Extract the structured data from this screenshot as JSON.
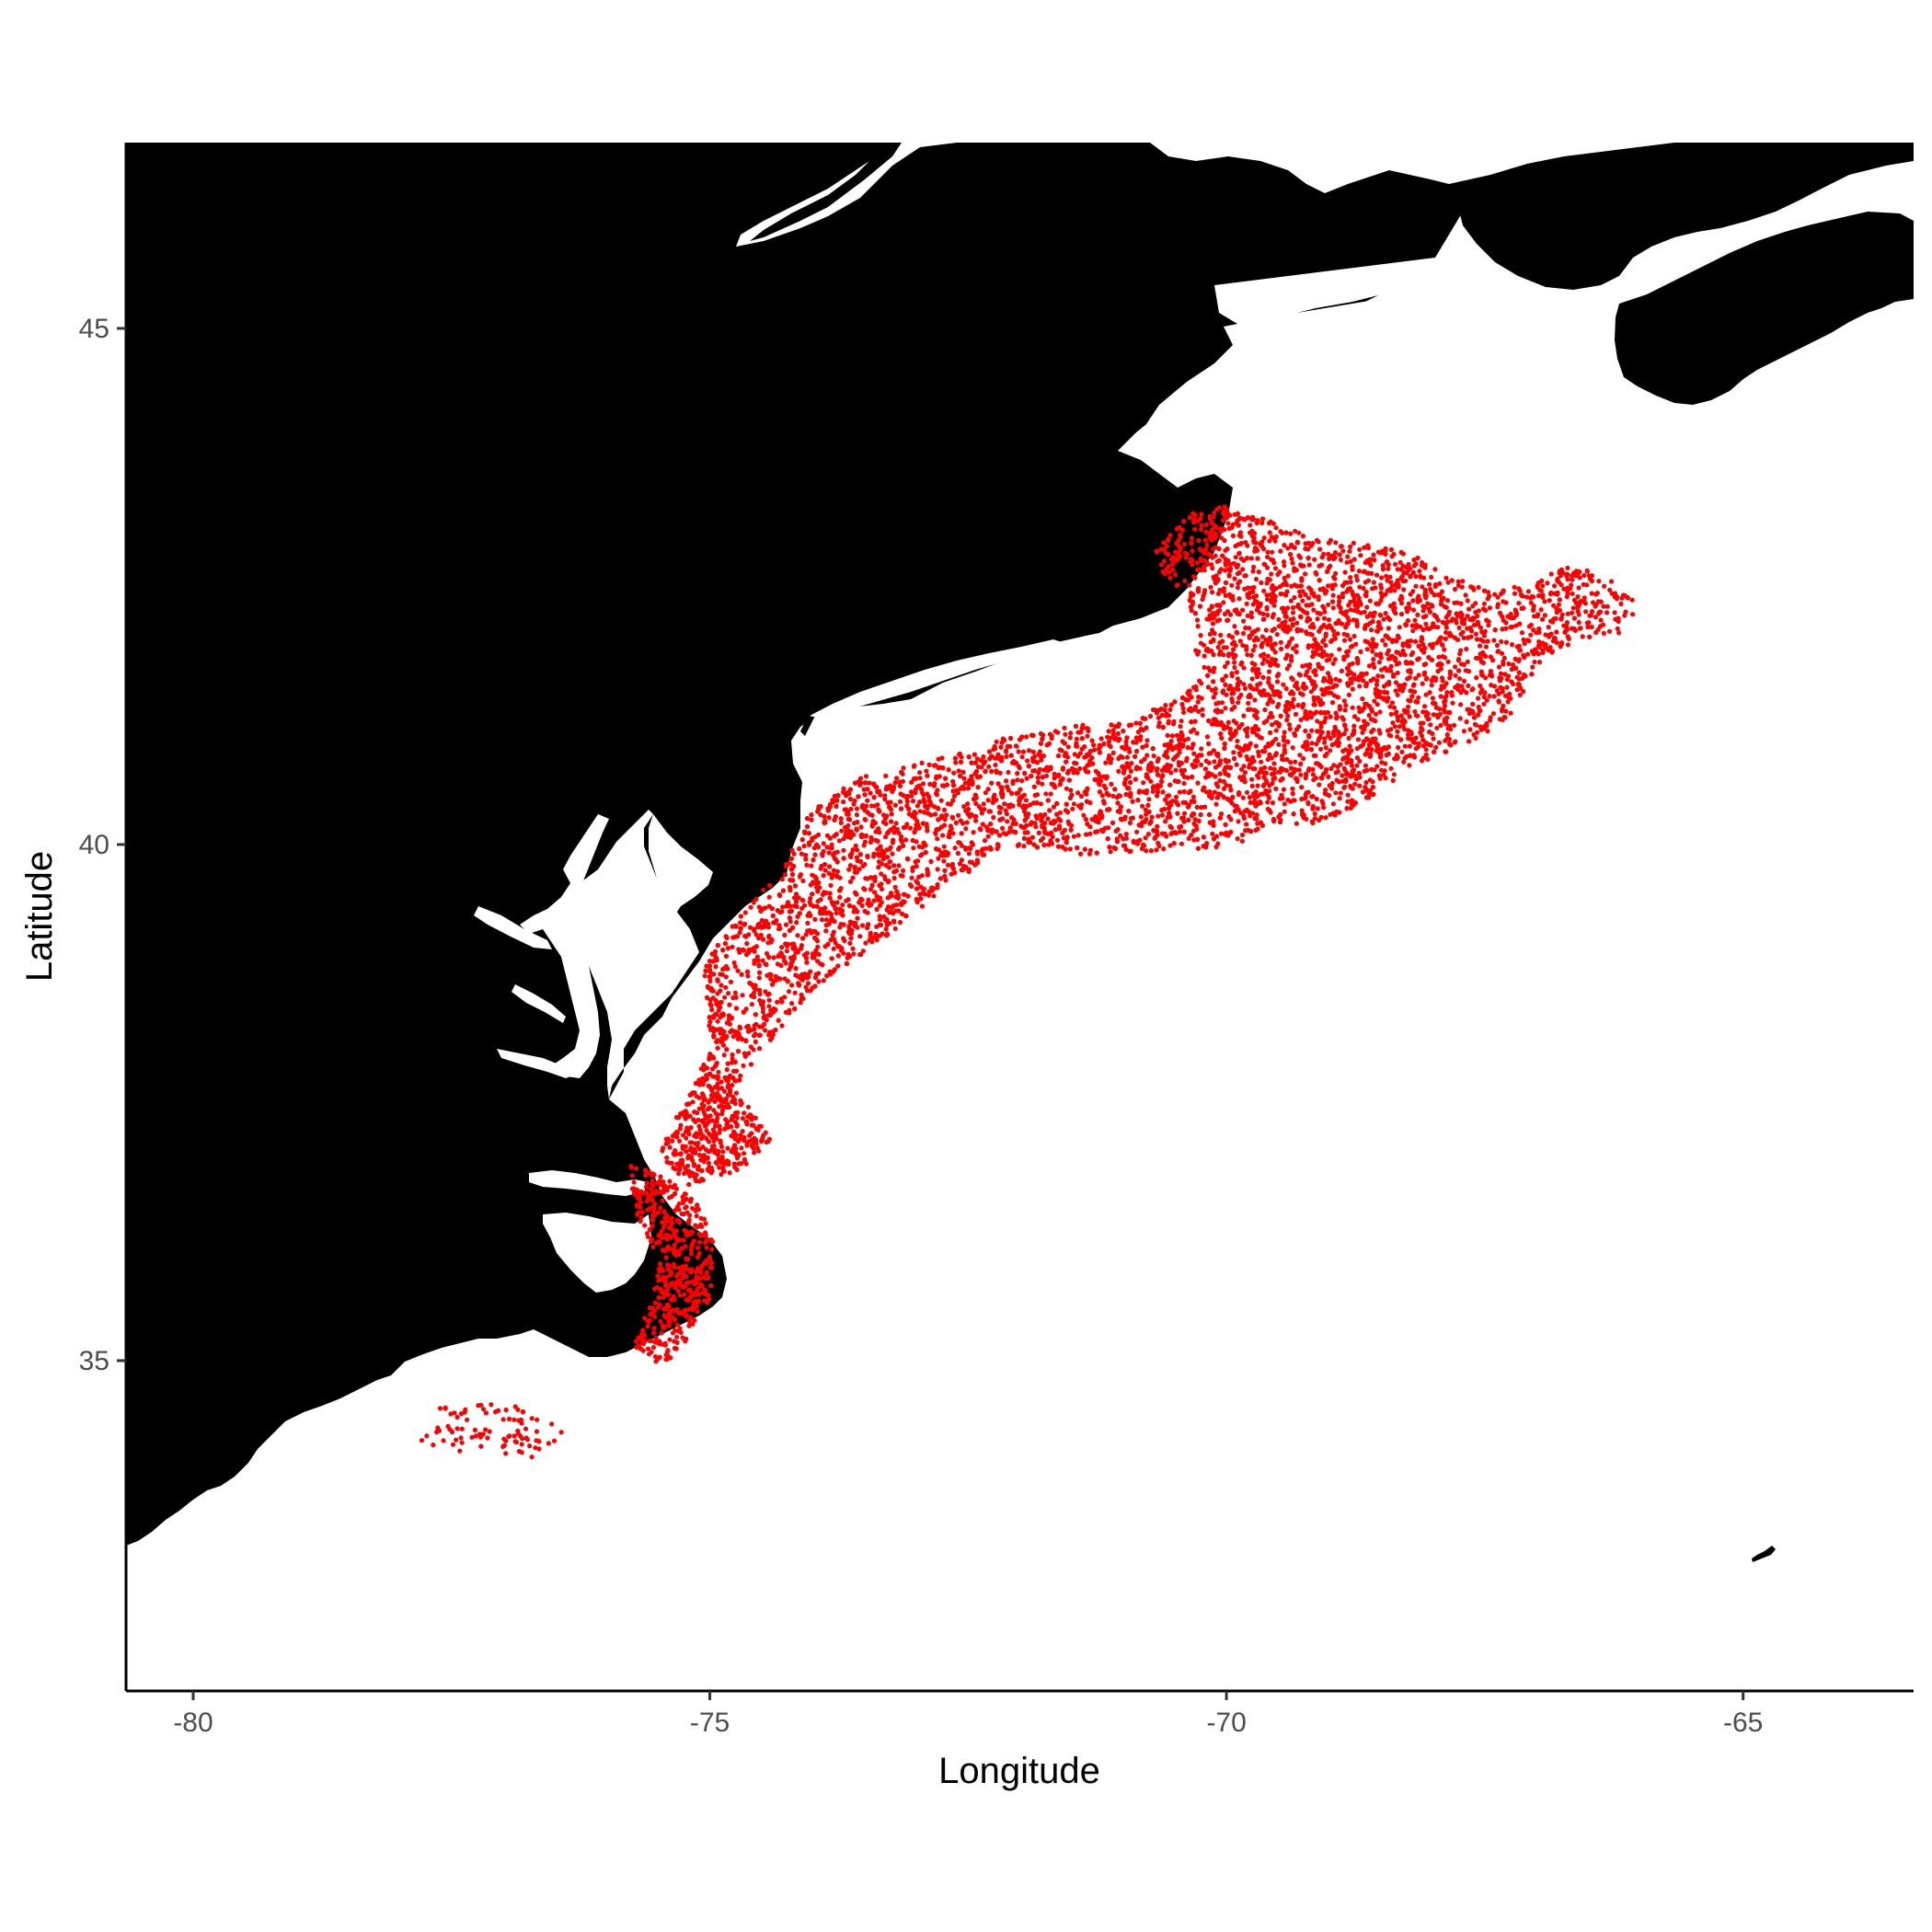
{
  "map": {
    "xlabel": "Longitude",
    "ylabel": "Latitude",
    "xlim": [
      -80.65,
      -63.35
    ],
    "ylim": [
      31.8,
      46.8
    ],
    "x_ticks": [
      {
        "value": -80,
        "label": "-80"
      },
      {
        "value": -75,
        "label": "-75"
      },
      {
        "value": -70,
        "label": "-70"
      },
      {
        "value": -65,
        "label": "-65"
      }
    ],
    "y_ticks": [
      {
        "value": 35,
        "label": "35"
      },
      {
        "value": 40,
        "label": "40"
      },
      {
        "value": 45,
        "label": "45"
      }
    ],
    "land_color": "#000000",
    "water_color": "#ffffff",
    "point_color": "#ff0000",
    "grid": false,
    "legend": "none"
  },
  "chart_data": {
    "type": "scatter",
    "point_color": "#ff0000",
    "regions": [
      {
        "polygon": [
          [
            -77.6,
            34.55
          ],
          [
            -77.2,
            34.6
          ],
          [
            -76.8,
            34.55
          ],
          [
            -76.45,
            34.4
          ],
          [
            -76.4,
            34.2
          ],
          [
            -76.7,
            34.05
          ],
          [
            -77.3,
            34.1
          ],
          [
            -77.8,
            34.2
          ],
          [
            -77.75,
            34.4
          ]
        ],
        "n": 90
      },
      {
        "polygon": [
          [
            -75.8,
            36.9
          ],
          [
            -75.45,
            36.8
          ],
          [
            -75.1,
            36.5
          ],
          [
            -74.95,
            36.1
          ],
          [
            -75.0,
            35.6
          ],
          [
            -75.2,
            35.2
          ],
          [
            -75.45,
            34.95
          ],
          [
            -75.75,
            35.1
          ],
          [
            -75.6,
            35.5
          ],
          [
            -75.5,
            36.0
          ],
          [
            -75.7,
            36.4
          ]
        ],
        "n": 500
      },
      {
        "polygon": [
          [
            -75.0,
            38.0
          ],
          [
            -74.65,
            37.5
          ],
          [
            -74.4,
            37.15
          ],
          [
            -74.7,
            36.85
          ],
          [
            -75.2,
            36.7
          ],
          [
            -75.5,
            37.0
          ],
          [
            -75.3,
            37.4
          ]
        ],
        "n": 420
      },
      {
        "polygon": [
          [
            -75.05,
            38.85
          ],
          [
            -74.7,
            39.35
          ],
          [
            -74.3,
            39.75
          ],
          [
            -74.05,
            40.3
          ],
          [
            -73.55,
            40.65
          ],
          [
            -72.9,
            40.8
          ],
          [
            -72.1,
            41.05
          ],
          [
            -71.5,
            41.15
          ],
          [
            -70.9,
            41.2
          ],
          [
            -70.45,
            41.45
          ],
          [
            -70.3,
            41.55
          ],
          [
            -70.0,
            41.55
          ],
          [
            -69.9,
            40.8
          ],
          [
            -69.9,
            40.0
          ],
          [
            -70.3,
            39.95
          ],
          [
            -71.4,
            39.9
          ],
          [
            -72.1,
            40.0
          ],
          [
            -72.7,
            39.6
          ],
          [
            -73.4,
            39.0
          ],
          [
            -74.0,
            38.6
          ],
          [
            -74.5,
            38.0
          ],
          [
            -74.8,
            37.6
          ],
          [
            -75.05,
            38.3
          ]
        ],
        "n": 3200
      },
      {
        "polygon": [
          [
            -70.7,
            42.85
          ],
          [
            -70.35,
            43.2
          ],
          [
            -70.0,
            43.3
          ],
          [
            -69.5,
            43.1
          ],
          [
            -69.0,
            42.95
          ],
          [
            -68.55,
            42.9
          ],
          [
            -68.2,
            42.85
          ],
          [
            -67.9,
            42.6
          ],
          [
            -67.5,
            42.5
          ],
          [
            -67.1,
            42.5
          ],
          [
            -66.7,
            42.7
          ],
          [
            -66.3,
            42.6
          ],
          [
            -66.0,
            42.3
          ],
          [
            -66.2,
            42.05
          ],
          [
            -66.55,
            41.95
          ],
          [
            -66.95,
            41.8
          ],
          [
            -67.2,
            41.3
          ],
          [
            -67.6,
            41.0
          ],
          [
            -68.2,
            40.75
          ],
          [
            -68.7,
            40.4
          ],
          [
            -69.1,
            40.2
          ],
          [
            -69.5,
            40.2
          ],
          [
            -69.9,
            40.0
          ],
          [
            -69.9,
            40.8
          ],
          [
            -70.0,
            41.55
          ],
          [
            -70.3,
            41.55
          ],
          [
            -70.3,
            42.0
          ],
          [
            -70.4,
            42.4
          ],
          [
            -70.6,
            42.6
          ]
        ],
        "n": 3000
      }
    ]
  }
}
